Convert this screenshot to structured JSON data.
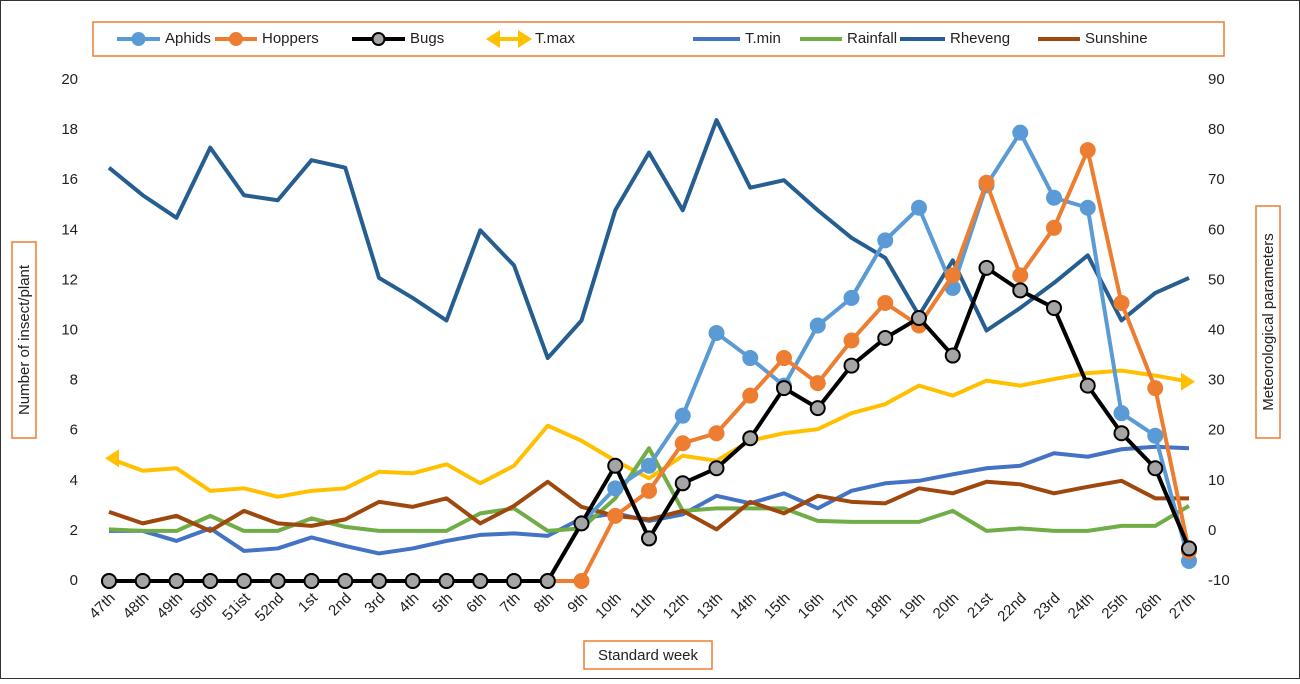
{
  "chart_data": {
    "type": "line",
    "categories": [
      "47th",
      "48th",
      "49th",
      "50th",
      "51ist",
      "52nd",
      "1st",
      "2nd",
      "3rd",
      "4th",
      "5th",
      "6th",
      "7th",
      "8th",
      "9th",
      "10th",
      "11th",
      "12th",
      "13th",
      "14th",
      "15th",
      "16th",
      "17th",
      "18th",
      "19th",
      "20th",
      "21st",
      "22nd",
      "23rd",
      "24th",
      "25th",
      "26th",
      "27th"
    ],
    "ylim": [
      0,
      20
    ],
    "yticks": [
      0,
      2,
      4,
      6,
      8,
      10,
      12,
      14,
      16,
      18,
      20
    ],
    "y2lim": [
      -10,
      90
    ],
    "y2ticks": [
      -10,
      0,
      10,
      20,
      30,
      40,
      50,
      60,
      70,
      80,
      90
    ],
    "y_label": "Number of insect/plant",
    "y2_label": "Meteorological parameters",
    "x_label": "Standard week",
    "series": [
      {
        "name": "Rheveng",
        "color": "#255e91",
        "axis": "y2",
        "marker": "none",
        "values": [
          72.5,
          67,
          62.5,
          76.5,
          67,
          66,
          74,
          72.5,
          50.5,
          46.5,
          42,
          60,
          53,
          34.5,
          42,
          64,
          75.5,
          64,
          82,
          68.5,
          70,
          64,
          58.5,
          54.5,
          43,
          54,
          40,
          44.5,
          49.5,
          55,
          42,
          47.5,
          50.5
        ]
      },
      {
        "name": "T.max",
        "color": "#ffc000",
        "axis": "y2",
        "marker": "arrow",
        "values": [
          14.5,
          12,
          12.5,
          8,
          8.5,
          6.8,
          8,
          8.5,
          11.8,
          11.5,
          13.3,
          9.5,
          13,
          21,
          18,
          14,
          10.5,
          15,
          14,
          18,
          19.5,
          20.3,
          23.5,
          25.3,
          29,
          27,
          30,
          29,
          30.3,
          31.5,
          32,
          31,
          29.8
        ]
      },
      {
        "name": "T.min",
        "color": "#4472c4",
        "axis": "y2",
        "marker": "none",
        "values": [
          0,
          0,
          -2,
          0.5,
          -4,
          -3.5,
          -1.3,
          -3,
          -4.5,
          -3.5,
          -2,
          -0.8,
          -0.5,
          -1,
          2.5,
          3.5,
          2,
          3.3,
          7,
          5.5,
          7.5,
          4.5,
          8,
          9.5,
          10,
          11.3,
          12.5,
          13,
          15.5,
          14.8,
          16.3,
          16.8,
          16.5
        ]
      },
      {
        "name": "Rainfall",
        "color": "#70ad47",
        "axis": "y2",
        "marker": "none",
        "values": [
          0.3,
          0,
          0,
          3,
          0,
          0,
          2.5,
          0.8,
          0,
          0,
          0,
          3.5,
          4.5,
          0,
          0.5,
          6.5,
          16.5,
          4,
          4.5,
          4.5,
          4.5,
          2,
          1.8,
          1.8,
          1.8,
          4,
          0,
          0.5,
          0,
          0,
          1,
          1,
          5
        ]
      },
      {
        "name": "Sunshine",
        "color": "#9e480e",
        "axis": "y2",
        "marker": "none",
        "values": [
          3.8,
          1.5,
          3,
          0,
          4,
          1.5,
          1,
          2.3,
          5.8,
          4.8,
          6.5,
          1.5,
          5,
          9.8,
          4.8,
          3,
          2.3,
          4,
          0.3,
          5.8,
          3.5,
          7,
          5.8,
          5.5,
          8.5,
          7.5,
          9.8,
          9.3,
          7.5,
          8.8,
          10,
          6.5,
          6.5
        ]
      },
      {
        "name": "Aphids",
        "color": "#5b9bd5",
        "axis": "y",
        "marker": "circle",
        "values": [
          0,
          0,
          0,
          0,
          0,
          0,
          0,
          0,
          0,
          0,
          0,
          0,
          0,
          0,
          2.3,
          3.7,
          4.6,
          6.6,
          9.9,
          8.9,
          7.8,
          10.2,
          11.3,
          13.6,
          14.9,
          11.7,
          15.8,
          17.9,
          15.3,
          14.9,
          6.7,
          5.8,
          0.8
        ]
      },
      {
        "name": "Hoppers",
        "color": "#ed7d31",
        "axis": "y",
        "marker": "circle",
        "values": [
          0,
          0,
          0,
          0,
          0,
          0,
          0,
          0,
          0,
          0,
          0,
          0,
          0,
          0,
          0,
          2.6,
          3.6,
          5.5,
          5.9,
          7.4,
          8.9,
          7.9,
          9.6,
          11.1,
          10.2,
          12.2,
          15.9,
          12.2,
          14.1,
          17.2,
          11.1,
          7.7,
          1.2
        ]
      },
      {
        "name": "Bugs",
        "color": "#000000",
        "axis": "y",
        "marker": "ringed",
        "values": [
          0,
          0,
          0,
          0,
          0,
          0,
          0,
          0,
          0,
          0,
          0,
          0,
          0,
          0,
          2.3,
          4.6,
          1.7,
          3.9,
          4.5,
          5.7,
          7.7,
          6.9,
          8.6,
          9.7,
          10.5,
          9.0,
          12.5,
          11.6,
          10.9,
          7.8,
          5.9,
          4.5,
          1.3
        ]
      }
    ],
    "legend_order": [
      "Aphids",
      "Hoppers",
      "Bugs",
      "T.max",
      "T.min",
      "Rainfall",
      "Rheveng",
      "Sunshine"
    ]
  }
}
